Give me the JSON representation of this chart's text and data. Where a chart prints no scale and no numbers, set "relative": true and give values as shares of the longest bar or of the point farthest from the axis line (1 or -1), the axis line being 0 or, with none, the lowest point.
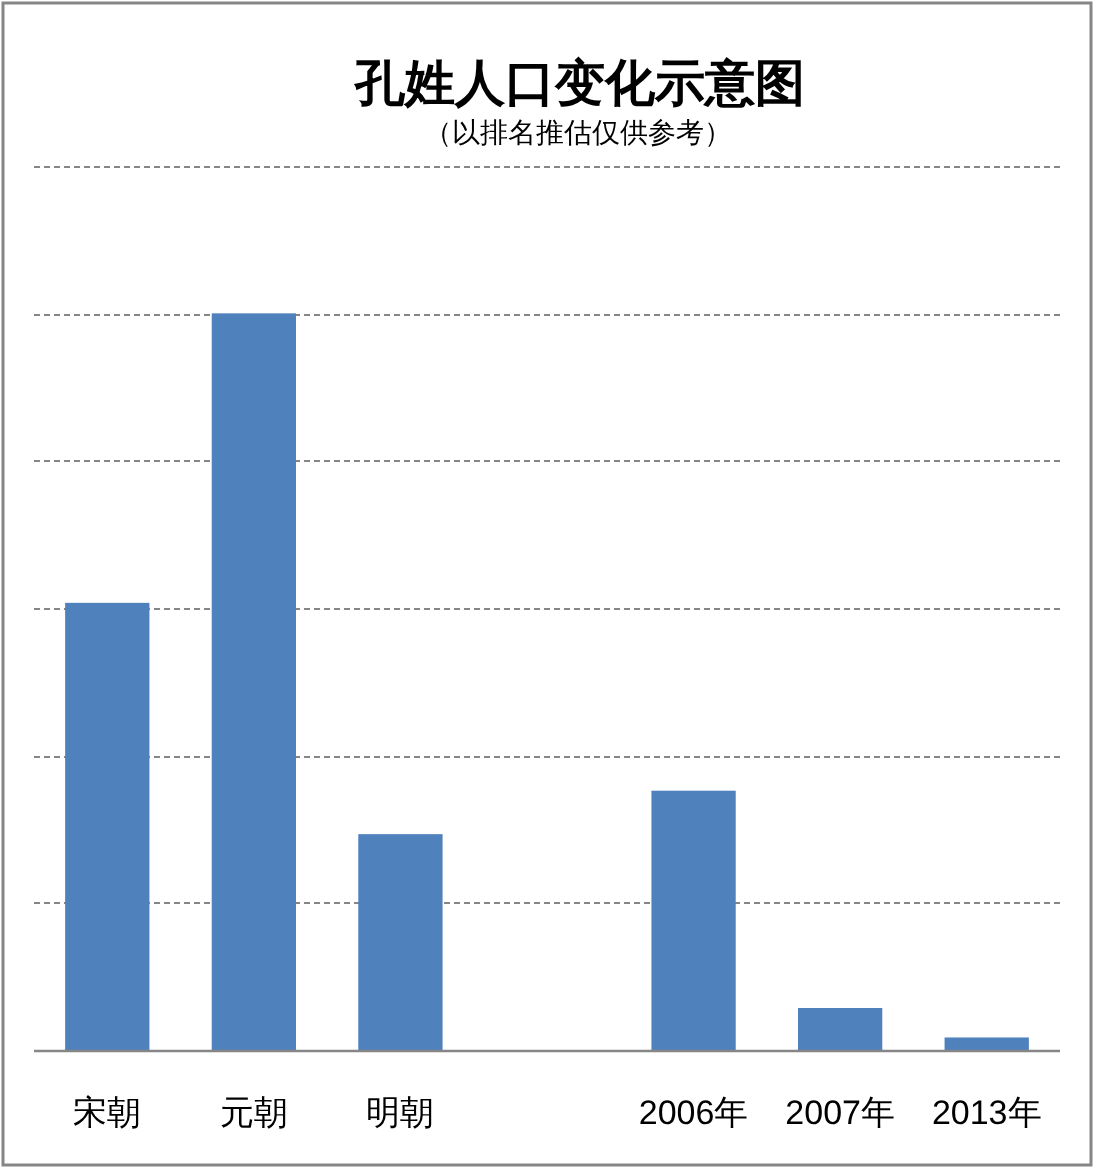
{
  "chart_data": {
    "type": "bar",
    "title": "孔姓人口变化示意图",
    "subtitle": "（以排名推估仅供参考）",
    "categories": [
      "宋朝",
      "元朝",
      "明朝",
      null,
      "2006年",
      "2007年",
      "2013年"
    ],
    "values": [
      0.607,
      1,
      0.293,
      null,
      0.352,
      0.057,
      0.017
    ],
    "relative": true,
    "color": "#4f81bd",
    "grid": "y",
    "legend": false
  }
}
